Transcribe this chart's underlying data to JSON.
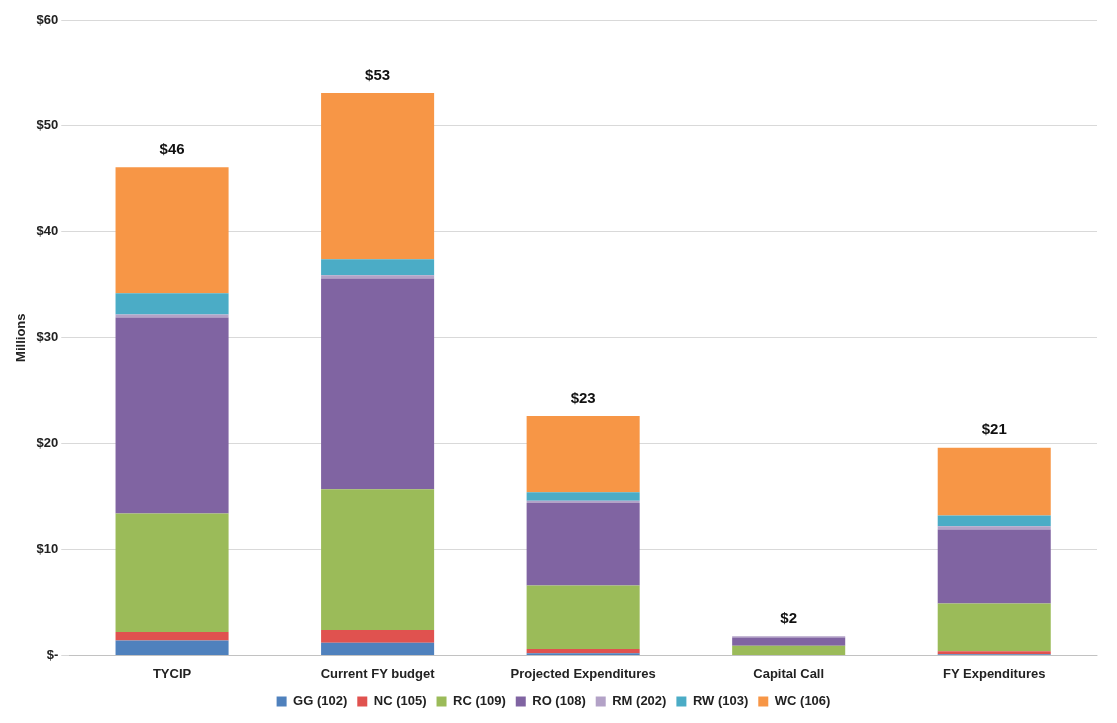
{
  "chart_data": {
    "type": "bar",
    "stacked": true,
    "ylabel": "Millions",
    "categories": [
      "TYCIP",
      "Current FY budget",
      "Projected Expenditures",
      "Capital Call",
      "FY Expenditures"
    ],
    "series": [
      {
        "name": "GG (102)",
        "color": "#4f81bd",
        "values": [
          1.4,
          1.2,
          0.2,
          0,
          0.1
        ]
      },
      {
        "name": "NC (105)",
        "color": "#e0524f",
        "values": [
          0.8,
          1.2,
          0.4,
          0,
          0.3
        ]
      },
      {
        "name": "RC (109)",
        "color": "#9bbb59",
        "values": [
          11.2,
          13.3,
          6.0,
          0.9,
          4.5
        ]
      },
      {
        "name": "RO (108)",
        "color": "#8064a2",
        "values": [
          18.5,
          19.9,
          7.8,
          0.8,
          7.0
        ]
      },
      {
        "name": "RM (202)",
        "color": "#b3a2c7",
        "values": [
          0.3,
          0.3,
          0.2,
          0.1,
          0.3
        ]
      },
      {
        "name": "RW (103)",
        "color": "#4bacc6",
        "values": [
          2.0,
          1.5,
          0.8,
          0,
          1.0
        ]
      },
      {
        "name": "WC (106)",
        "color": "#f79646",
        "values": [
          11.9,
          15.7,
          7.2,
          0,
          6.4
        ]
      }
    ],
    "totals": [
      "$46",
      "$53",
      "$23",
      "$2",
      "$21"
    ],
    "ylim": [
      0,
      60
    ],
    "yticks": [
      {
        "value": 0,
        "label": "$-"
      },
      {
        "value": 10,
        "label": "$10"
      },
      {
        "value": 20,
        "label": "$20"
      },
      {
        "value": 30,
        "label": "$30"
      },
      {
        "value": 40,
        "label": "$40"
      },
      {
        "value": 50,
        "label": "$50"
      },
      {
        "value": 60,
        "label": "$60"
      }
    ],
    "grid": "y",
    "legend": "bottom"
  }
}
